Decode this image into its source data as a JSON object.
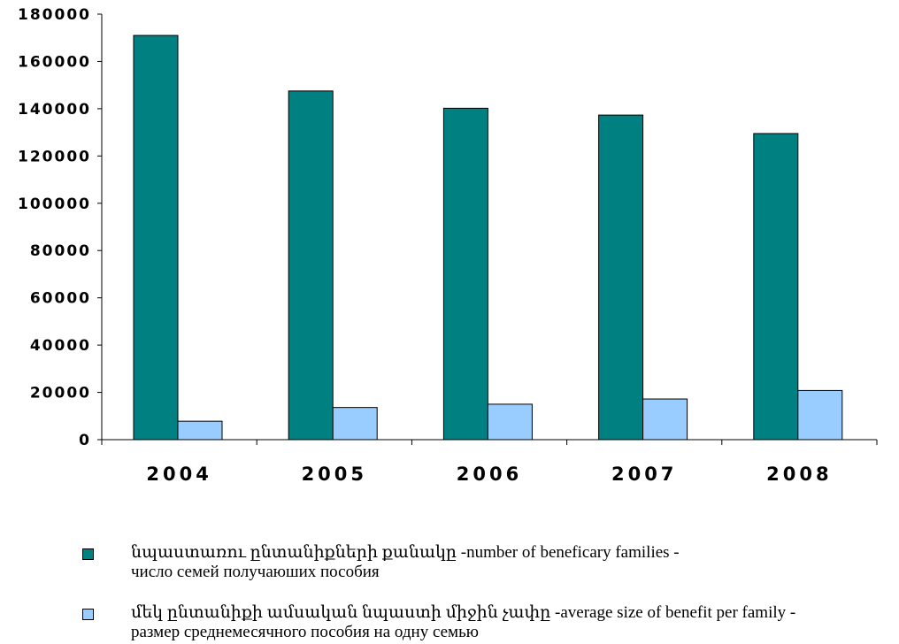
{
  "chart_data": {
    "type": "bar",
    "categories": [
      "2004",
      "2005",
      "2006",
      "2007",
      "2008"
    ],
    "series": [
      {
        "name": "նպաստառու ընտանիքների քանակը -number of beneficary families - число семей получаюших пособия",
        "color": "#008080",
        "values": [
          171000,
          147500,
          140200,
          137300,
          129500
        ]
      },
      {
        "name": "մեկ ընտանիքի ամսական նպաստի միջին չափը -average size of  benefit per family - размер среднемесячного пособия на одну семью",
        "color": "#99CCFF",
        "values": [
          7800,
          13600,
          15000,
          17200,
          20800
        ]
      }
    ],
    "ylim": [
      0,
      180000
    ],
    "yticks": [
      "0",
      "20000",
      "40000",
      "60000",
      "80000",
      "100000",
      "120000",
      "140000",
      "160000",
      "180000"
    ],
    "grid": false,
    "legend_position": "bottom"
  },
  "legend": [
    {
      "line1": "նպաստառու ընտանիքների քանակը -number of beneficary families -",
      "line2": "число семей получаюших пособия"
    },
    {
      "line1": "մեկ ընտանիքի ամսական նպաստի միջին չափը -average size of  benefit per family -",
      "line2": "размер среднемесячного пособия на одну семью"
    }
  ]
}
